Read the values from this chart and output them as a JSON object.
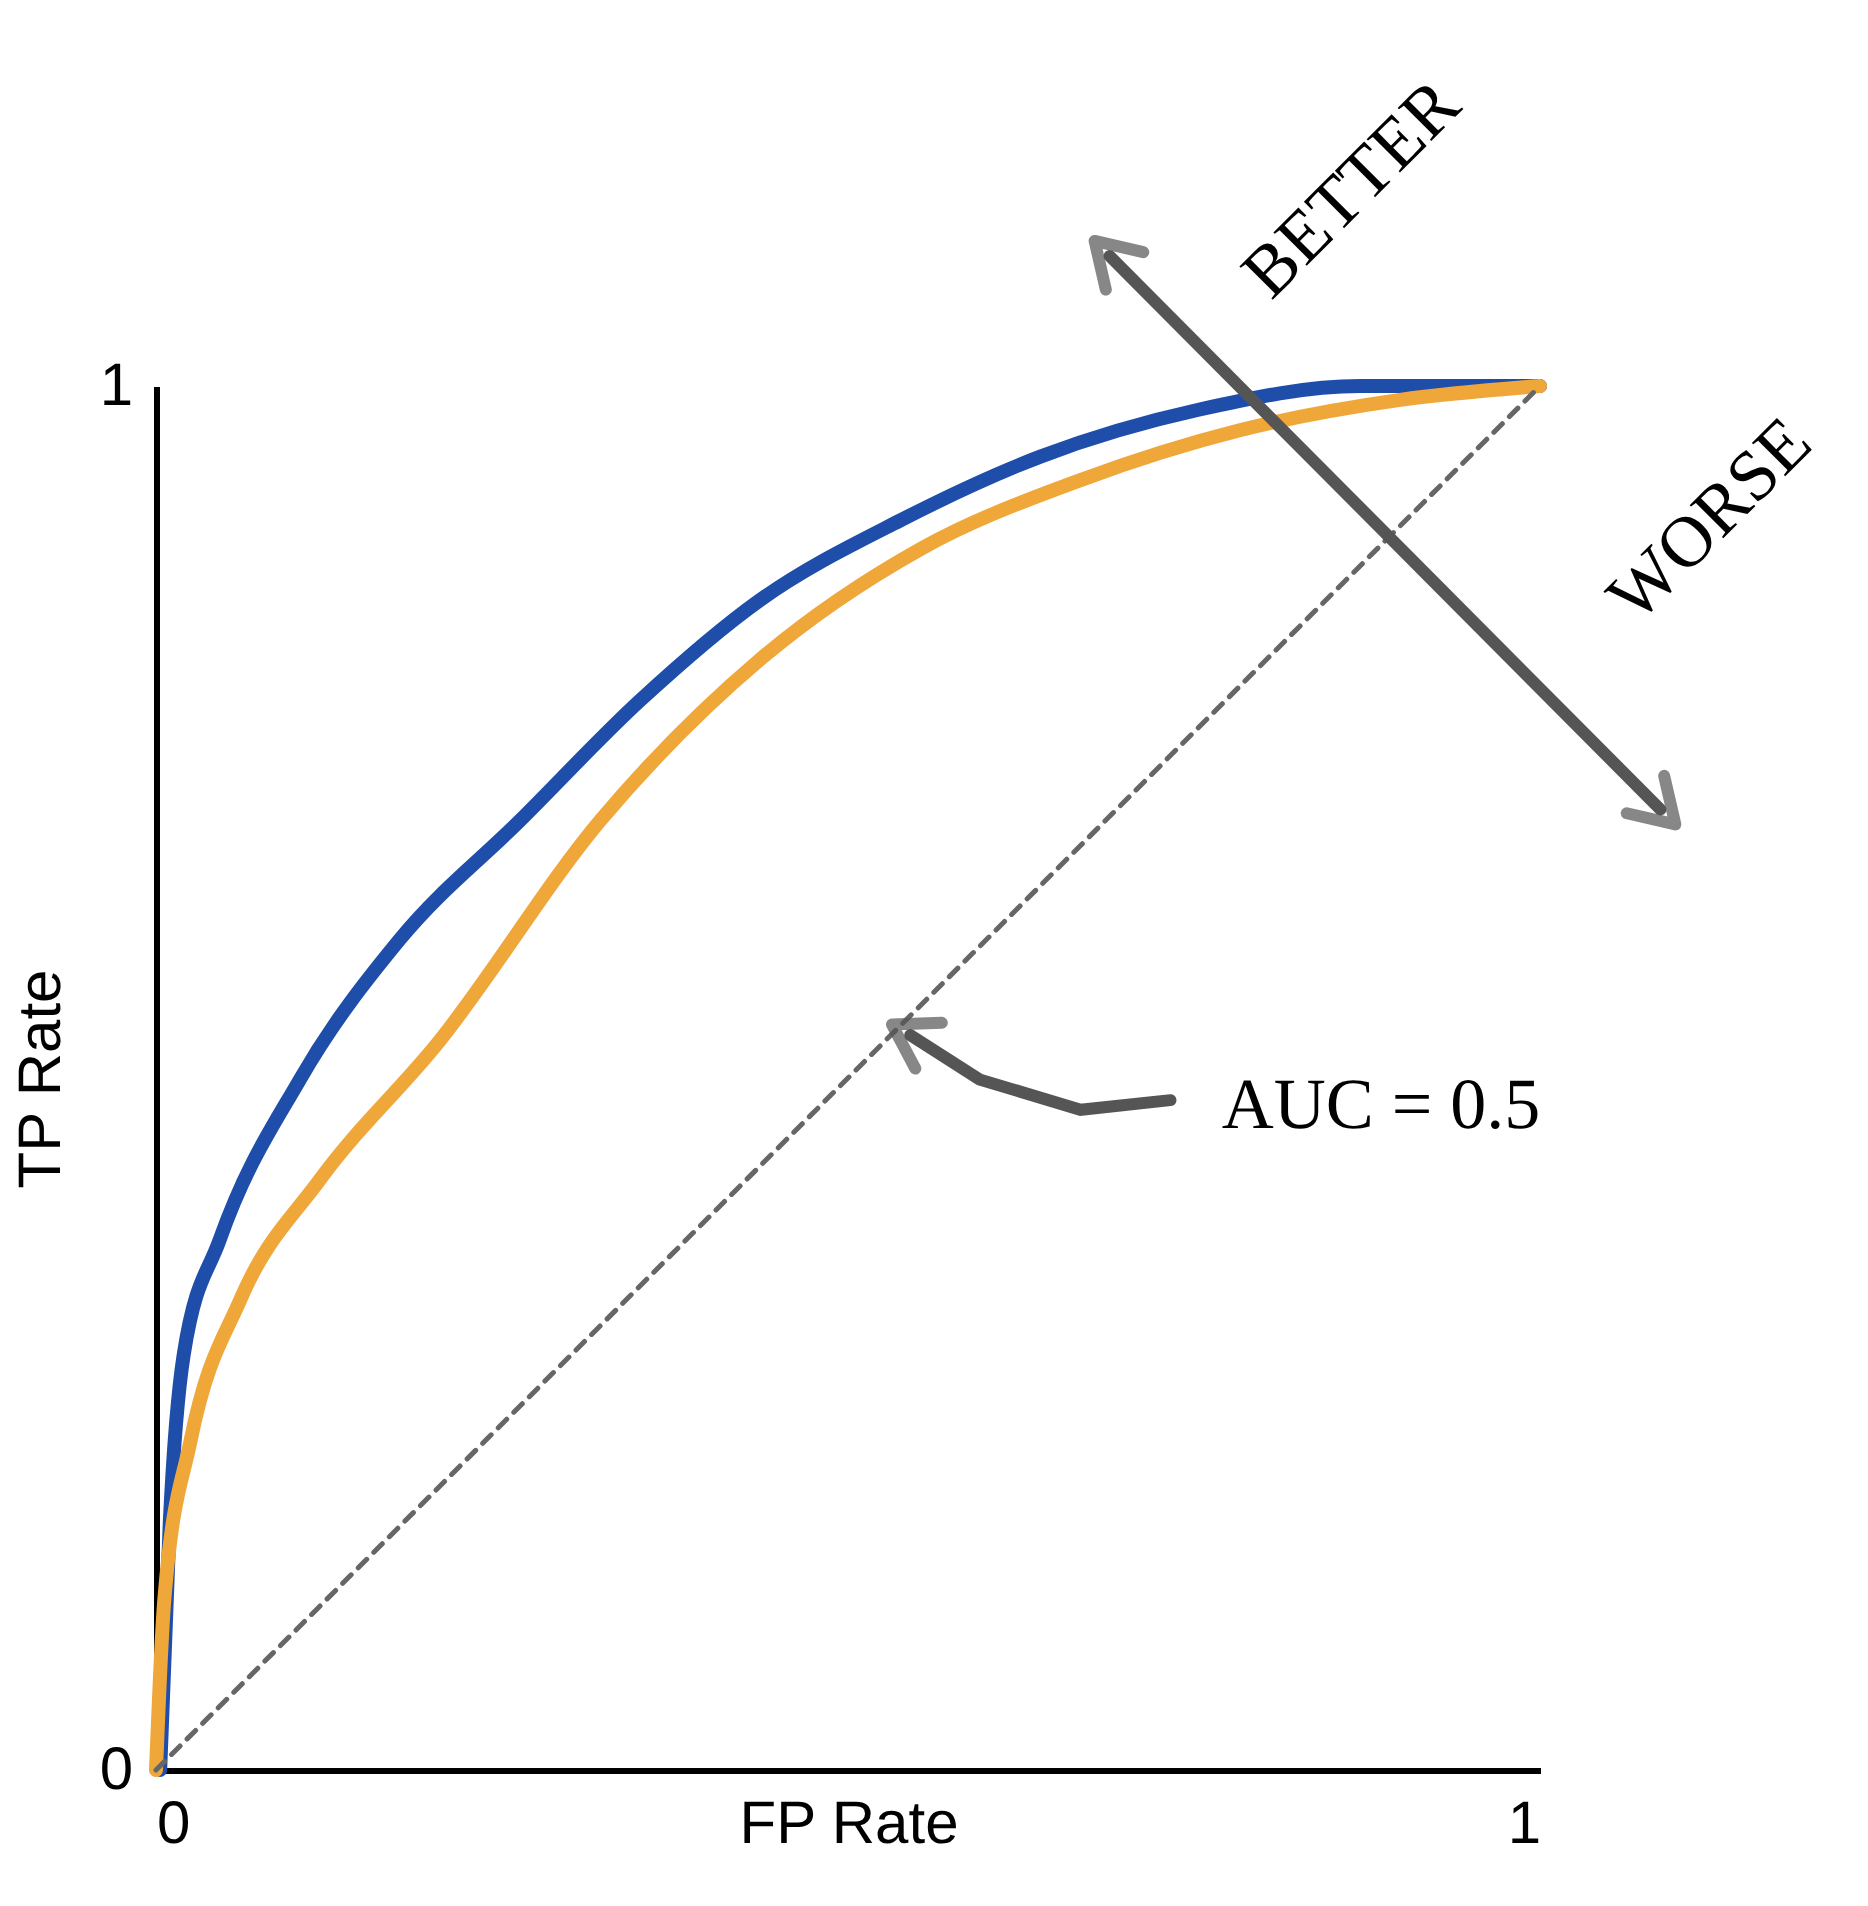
{
  "chart_data": {
    "type": "line",
    "xlabel": "FP Rate",
    "ylabel": "TP Rate",
    "xlim": [
      0,
      1
    ],
    "ylim": [
      0,
      1
    ],
    "xticks": [
      0,
      1
    ],
    "yticks": [
      0,
      1
    ],
    "grid": false,
    "marker": "none",
    "series": [
      {
        "color": "#1f4eaa",
        "x": [
          0.003,
          0.01,
          0.02,
          0.046,
          0.104,
          0.176,
          0.263,
          0.35,
          0.436,
          0.538,
          0.639,
          0.754,
          0.87,
          0.942,
          1.0
        ],
        "values": [
          0,
          0.18,
          0.3,
          0.383,
          0.499,
          0.6,
          0.686,
          0.773,
          0.845,
          0.903,
          0.949,
          0.983,
          1.0,
          1.0,
          1.0
        ]
      },
      {
        "color": "#f0a73a",
        "x": [
          0.0,
          0.006,
          0.025,
          0.061,
          0.118,
          0.205,
          0.321,
          0.436,
          0.552,
          0.668,
          0.783,
          0.899,
          1.0
        ],
        "values": [
          0,
          0.123,
          0.238,
          0.34,
          0.426,
          0.527,
          0.686,
          0.802,
          0.882,
          0.932,
          0.968,
          0.99,
          1.0
        ]
      },
      {
        "color": "#666666",
        "line_style": "dashed",
        "x": [
          0,
          1
        ],
        "values": [
          0,
          1
        ]
      }
    ],
    "annotations": [
      "BETTER",
      "WORSE",
      "AUC = 0.5"
    ]
  }
}
